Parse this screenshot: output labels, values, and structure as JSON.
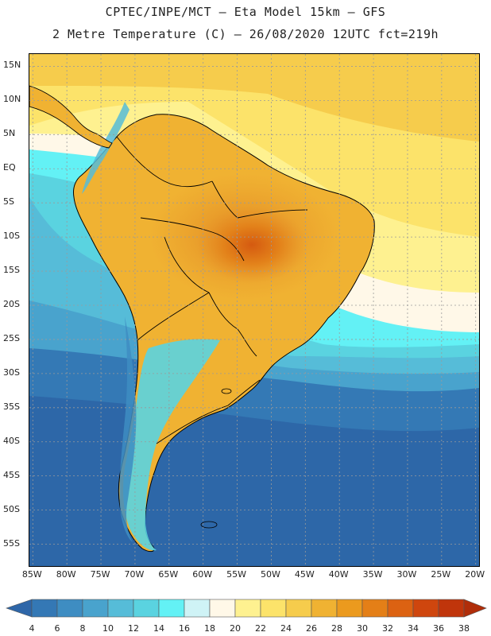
{
  "header": {
    "line1": "CPTEC/INPE/MCT –  Eta Model 15km – GFS",
    "line2": "2 Metre Temperature (C) – 26/08/2020 12UTC fct=219h"
  },
  "map": {
    "lat_ticks": [
      "15N",
      "10N",
      "5N",
      "EQ",
      "5S",
      "10S",
      "15S",
      "20S",
      "25S",
      "30S",
      "35S",
      "40S",
      "45S",
      "50S",
      "55S"
    ],
    "lat_values": [
      15,
      10,
      5,
      0,
      -5,
      -10,
      -15,
      -20,
      -25,
      -30,
      -35,
      -40,
      -45,
      -50,
      -55
    ],
    "lon_ticks": [
      "85W",
      "80W",
      "75W",
      "70W",
      "65W",
      "60W",
      "55W",
      "50W",
      "45W",
      "40W",
      "35W",
      "30W",
      "25W",
      "20W"
    ],
    "lon_values": [
      -85,
      -80,
      -75,
      -70,
      -65,
      -60,
      -55,
      -50,
      -45,
      -40,
      -35,
      -30,
      -25,
      -20
    ],
    "extent": {
      "lon_min": -85.5,
      "lon_max": -19.5,
      "lat_min": -58.2,
      "lat_max": 16.8
    },
    "gridline_color": "#9a9a9a"
  },
  "colorbar": {
    "levels": [
      "4",
      "6",
      "8",
      "10",
      "12",
      "14",
      "16",
      "18",
      "20",
      "22",
      "24",
      "26",
      "28",
      "30",
      "32",
      "34",
      "36",
      "38"
    ],
    "colors": [
      "#2e66a8",
      "#3478b5",
      "#3e8dc2",
      "#49a3cd",
      "#56bcd8",
      "#5ad3e0",
      "#63f1f5",
      "#cff3f6",
      "#fff8e8",
      "#fef190",
      "#fce36a",
      "#f6cc4c",
      "#f0b232",
      "#eb9a1e",
      "#e47f17",
      "#dc6212",
      "#cf460e",
      "#c0350b",
      "#b02d09"
    ]
  }
}
